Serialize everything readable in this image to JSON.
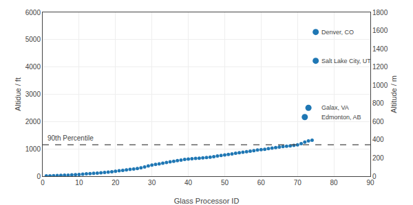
{
  "chart_data": {
    "type": "scatter",
    "xlabel": "Glass Processor ID",
    "ylabel": "Altidue / ft",
    "y2label": "Altitude / m",
    "xlim": [
      0,
      90
    ],
    "ylim": [
      0,
      6000
    ],
    "xticks": [
      0,
      10,
      20,
      30,
      40,
      50,
      60,
      70,
      80,
      90
    ],
    "yticks": [
      0,
      1000,
      2000,
      3000,
      4000,
      5000,
      6000
    ],
    "y2lim": [
      0,
      1800
    ],
    "y2ticks": [
      0,
      200,
      400,
      600,
      800,
      1000,
      1200,
      1400,
      1600,
      1800
    ],
    "grid": true,
    "series": [
      {
        "x": [
          1,
          2,
          3,
          4,
          5,
          6,
          7,
          8,
          9,
          10,
          11,
          12,
          13,
          14,
          15,
          16,
          17,
          18,
          19,
          20,
          21,
          22,
          23,
          24,
          25,
          26,
          27,
          28,
          29,
          30,
          31,
          32,
          33,
          34,
          35,
          36,
          37,
          38,
          39,
          40,
          41,
          42,
          43,
          44,
          45,
          46,
          47,
          48,
          49,
          50,
          51,
          52,
          53,
          54,
          55,
          56,
          57,
          58,
          59,
          60,
          61,
          62,
          63,
          64,
          65,
          66,
          67,
          68,
          69,
          70,
          71,
          72,
          73,
          74
        ],
        "values": [
          10,
          15,
          20,
          25,
          30,
          35,
          40,
          50,
          55,
          65,
          75,
          85,
          95,
          105,
          115,
          125,
          135,
          150,
          165,
          185,
          200,
          215,
          230,
          248,
          265,
          285,
          310,
          340,
          375,
          410,
          435,
          455,
          480,
          505,
          525,
          545,
          570,
          592,
          612,
          625,
          638,
          650,
          662,
          672,
          682,
          698,
          718,
          738,
          758,
          778,
          798,
          818,
          840,
          858,
          878,
          898,
          918,
          938,
          958,
          972,
          988,
          1008,
          1028,
          1048,
          1068,
          1088,
          1098,
          1108,
          1128,
          1148,
          1190,
          1250,
          1290,
          1320
        ]
      },
      {
        "x": [
          72,
          73,
          75,
          75
        ],
        "values": [
          2165,
          2503,
          4226,
          5280
        ]
      }
    ],
    "reference_line": {
      "y": 1150,
      "label": "90th Percentile",
      "line_style": "dashed"
    },
    "annotations": [
      {
        "text": "Denver, CO",
        "x": 75.5,
        "y": 5280
      },
      {
        "text": "Salt Lake City, UT",
        "x": 75.5,
        "y": 4226
      },
      {
        "text": "Galax, VA",
        "x": 75.5,
        "y": 2503
      },
      {
        "text": "Edmonton, AB",
        "x": 75.5,
        "y": 2165
      }
    ]
  }
}
